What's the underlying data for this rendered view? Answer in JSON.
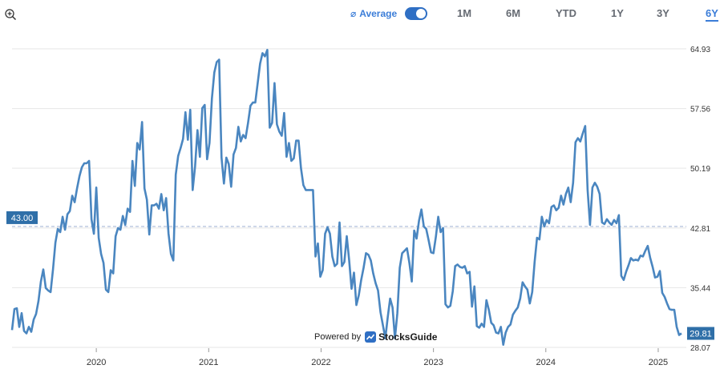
{
  "toolbar": {
    "average_symbol": "⌀",
    "average_label": "Average",
    "average_enabled": true,
    "ranges": [
      "1M",
      "6M",
      "YTD",
      "1Y",
      "3Y",
      "6Y"
    ],
    "active_range": "6Y",
    "zoom_icon": "zoom-in-icon"
  },
  "branding": {
    "powered_by": "Powered by",
    "brand_name": "StocksGuide"
  },
  "colors": {
    "line": "#4a86c0",
    "accent": "#3b7dd8",
    "label_bg": "#2f6fa8",
    "average_line": "#a9b8d8",
    "grid": "#e6e6e6"
  },
  "chart_data": {
    "type": "line",
    "x_start": "2019-04",
    "x_end": "2025-04",
    "xticks": [
      "2020",
      "2021",
      "2022",
      "2023",
      "2024",
      "2025"
    ],
    "yticks": [
      "64.93",
      "57.56",
      "50.19",
      "42.81",
      "35.44",
      "28.07"
    ],
    "ylim": [
      28.07,
      64.93
    ],
    "average_value": 43.0,
    "average_label": "43.00",
    "last_value_label": "29.81",
    "grid": true,
    "series": [
      {
        "values": [
          30.2,
          32.8,
          32.9,
          30.6,
          32.3,
          30.1,
          29.8,
          30.6,
          30.0,
          31.5,
          32.2,
          33.8,
          36.2,
          37.7,
          35.4,
          35.1,
          34.9,
          37.7,
          41.0,
          42.7,
          42.3,
          44.2,
          42.6,
          44.5,
          44.9,
          46.8,
          46.0,
          47.7,
          49.2,
          50.3,
          50.8,
          50.8,
          51.1,
          43.9,
          42.1,
          47.8,
          41.6,
          39.6,
          38.5,
          35.2,
          34.9,
          37.6,
          37.2,
          41.8,
          42.8,
          42.6,
          44.3,
          43.2,
          45.2,
          44.8,
          51.1,
          48.0,
          53.3,
          52.5,
          55.9,
          47.7,
          46.3,
          42.0,
          45.6,
          45.6,
          45.8,
          45.2,
          47.0,
          45.0,
          46.5,
          42.1,
          39.6,
          38.8,
          49.4,
          51.7,
          52.7,
          53.8,
          57.1,
          53.7,
          57.4,
          47.5,
          50.4,
          54.9,
          51.6,
          57.6,
          58.0,
          51.3,
          53.3,
          58.8,
          62.0,
          63.3,
          63.6,
          51.5,
          48.3,
          51.5,
          50.7,
          47.9,
          51.9,
          52.7,
          55.3,
          53.5,
          54.3,
          53.9,
          55.8,
          57.9,
          58.3,
          58.3,
          60.7,
          63.1,
          64.4,
          64.0,
          64.8,
          55.2,
          55.8,
          60.7,
          55.6,
          54.7,
          54.2,
          57.0,
          51.6,
          53.3,
          51.1,
          51.4,
          53.6,
          53.6,
          50.2,
          48.1,
          47.5,
          47.5,
          47.5,
          47.5,
          39.3,
          40.9,
          36.8,
          37.6,
          42.1,
          42.9,
          42.1,
          39.3,
          38.1,
          38.4,
          43.5,
          38.1,
          38.6,
          41.8,
          38.8,
          35.3,
          37.3,
          33.3,
          34.5,
          36.4,
          37.9,
          39.7,
          39.5,
          38.8,
          37.2,
          36.0,
          35.1,
          32.4,
          30.8,
          29.2,
          31.8,
          34.1,
          33.0,
          29.2,
          32.3,
          37.9,
          39.7,
          40.0,
          40.3,
          38.5,
          36.2,
          42.5,
          41.5,
          43.7,
          45.1,
          43.0,
          42.7,
          41.3,
          39.8,
          39.7,
          41.7,
          44.2,
          42.3,
          42.8,
          33.4,
          33.0,
          33.2,
          35.0,
          38.1,
          38.3,
          38.0,
          37.9,
          38.1,
          37.2,
          37.4,
          33.1,
          35.6,
          30.7,
          30.5,
          31.0,
          30.6,
          33.9,
          32.7,
          31.1,
          30.8,
          29.9,
          29.8,
          30.6,
          28.4,
          29.9,
          30.6,
          30.9,
          32.1,
          32.6,
          33.0,
          34.1,
          36.1,
          35.6,
          35.2,
          33.5,
          34.9,
          38.6,
          41.6,
          41.4,
          44.2,
          43.0,
          43.8,
          43.4,
          45.4,
          45.6,
          45.0,
          45.3,
          46.8,
          45.7,
          47.0,
          47.8,
          46.0,
          48.4,
          53.4,
          53.9,
          53.5,
          54.5,
          55.4,
          47.5,
          43.2,
          47.8,
          48.4,
          47.9,
          47.0,
          43.5,
          43.3,
          43.9,
          43.5,
          43.2,
          43.8,
          43.4,
          44.4,
          36.9,
          36.4,
          37.4,
          38.2,
          39.1,
          38.8,
          38.9,
          38.8,
          39.4,
          39.3,
          40.0,
          40.6,
          39.1,
          38.0,
          36.7,
          36.8,
          37.5,
          34.8,
          34.3,
          33.5,
          32.8,
          32.7,
          32.7,
          30.6,
          29.6,
          29.8
        ]
      }
    ]
  }
}
